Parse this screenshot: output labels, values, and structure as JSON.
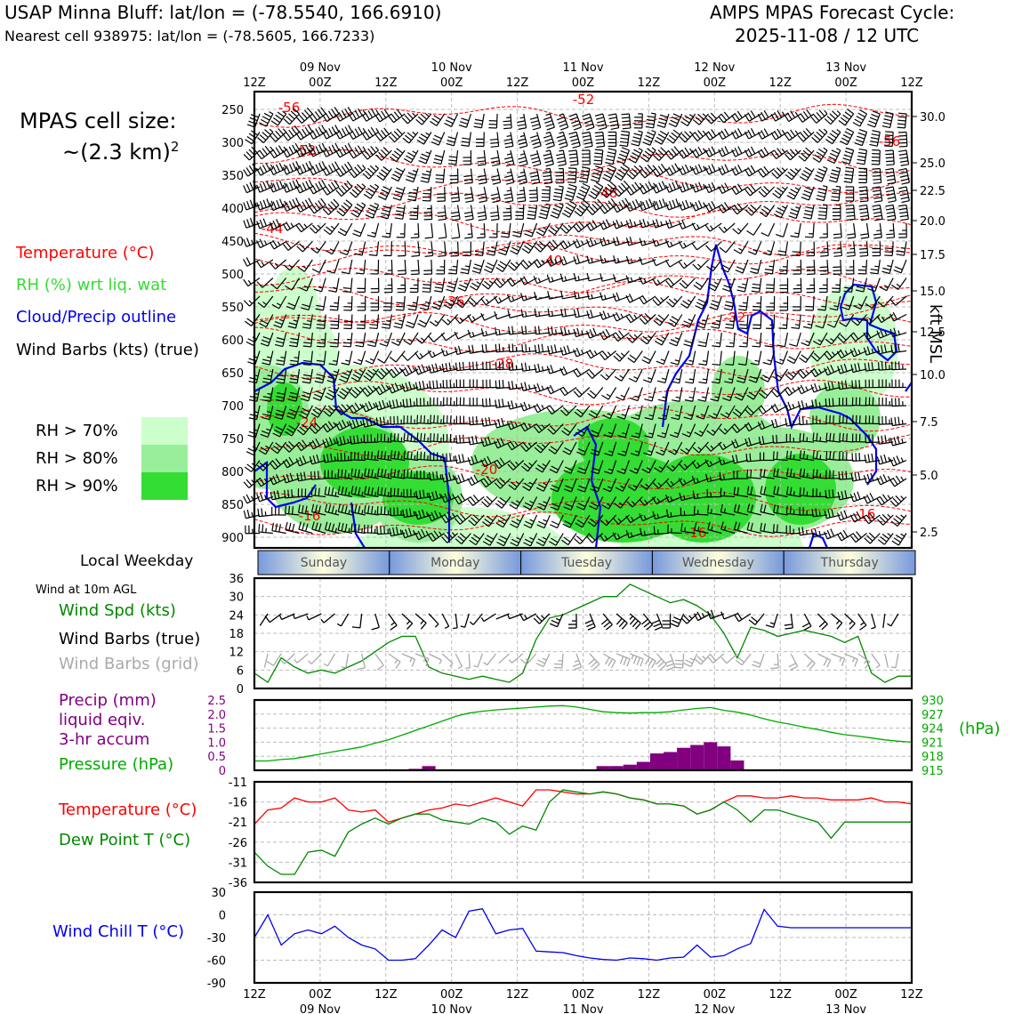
{
  "header": {
    "title": "USAP Minna Bluff: lat/lon = (-78.5540, 166.6910)",
    "subtitle": "Nearest cell 938975: lat/lon = (-78.5605, 166.7233)",
    "cycle_label": "AMPS MPAS Forecast Cycle:",
    "cycle_value": "2025-11-08 / 12 UTC"
  },
  "left_labels": {
    "cell_size_label": "MPAS cell size:",
    "cell_size_value": "~(2.3 km)",
    "cell_size_exp": "2",
    "temperature": "Temperature (°C)",
    "rh": "RH (%) wrt liq. wat",
    "cloud": "Cloud/Precip outline",
    "barbs": "Wind Barbs (kts) (true)",
    "rh70": "RH > 70%",
    "rh80": "RH > 80%",
    "rh90": "RH > 90%",
    "weekday": "Local Weekday",
    "wind10m": "Wind at 10m AGL",
    "wspd": "Wind Spd (kts)",
    "barbs_true": "Wind Barbs (true)",
    "barbs_grid": "Wind Barbs (grid)",
    "precip1": "Precip (mm)",
    "precip2": "liquid eqiv.",
    "precip3": "3-hr accum",
    "pressure": "Pressure (hPa)",
    "temp2": "Temperature (°C)",
    "dewpt": "Dew Point T (°C)",
    "windchill": "Wind Chill T (°C)",
    "kft": "kft MSL",
    "hpa": "(hPa)"
  },
  "colors": {
    "temperature": "#ff0000",
    "rh_text": "#33dd33",
    "cloud": "#0000ee",
    "rh70": "#ccffcc",
    "rh80": "#99ee99",
    "rh90": "#33dd33",
    "wspd": "#008800",
    "grid_barb": "#aaaaaa",
    "precip": "#800080",
    "pressure": "#00aa00",
    "dewpt": "#008800",
    "windchill": "#0000ee"
  },
  "time_axis": {
    "ticks": [
      "12Z",
      "00Z",
      "12Z",
      "00Z",
      "12Z",
      "00Z",
      "12Z",
      "00Z",
      "12Z",
      "00Z",
      "12Z"
    ],
    "dates": [
      "09 Nov",
      "10 Nov",
      "11 Nov",
      "12 Nov",
      "13 Nov"
    ]
  },
  "weekdays": [
    "Sunday",
    "Monday",
    "Tuesday",
    "Wednesday",
    "Thursday"
  ],
  "chart_data": [
    {
      "type": "heatmap",
      "title": "",
      "y_pressure_ticks": [
        "250",
        "300",
        "350",
        "400",
        "450",
        "500",
        "550",
        "600",
        "650",
        "700",
        "750",
        "800",
        "850",
        "900"
      ],
      "y_kft_ticks": [
        "30.0",
        "25.0",
        "22.5",
        "20.0",
        "17.5",
        "15.0",
        "12.5",
        "10.0",
        "7.5",
        "5.0",
        "2.5"
      ],
      "temperature_contour_labels": [
        "-56",
        "-52",
        "-52",
        "-56",
        "-48",
        "-44",
        "-40",
        "-36",
        "-32",
        "-28",
        "-24",
        "-20",
        "-16",
        "-16",
        "-16"
      ],
      "rh_shading": [
        "RH > 70%",
        "RH > 80%",
        "RH > 90%"
      ]
    },
    {
      "type": "line",
      "title": "",
      "ylabel": "Wind Spd (kts)",
      "ylim": [
        0,
        36
      ],
      "yticks": [
        "36",
        "30",
        "24",
        "18",
        "12",
        "6",
        "0"
      ],
      "series": [
        {
          "name": "Wind Spd (kts)",
          "values": [
            5,
            2,
            10,
            7,
            5,
            6,
            5,
            7,
            9,
            12,
            15,
            17,
            17,
            7,
            5,
            4,
            3,
            4,
            3,
            2,
            5,
            16,
            23,
            24,
            26,
            28,
            30,
            30,
            34,
            32,
            30,
            28,
            29,
            27,
            24,
            18,
            10,
            20,
            19,
            17,
            18,
            19,
            18,
            17,
            15,
            17,
            5,
            2,
            4,
            4
          ]
        }
      ],
      "x": [
        0,
        1,
        2,
        3,
        4,
        5,
        6,
        7,
        8,
        9,
        10,
        11,
        12,
        13,
        14,
        15,
        16,
        17,
        18,
        19,
        20,
        21,
        22,
        23,
        24,
        25,
        26,
        27,
        28,
        29,
        30,
        31,
        32,
        33,
        34,
        35,
        36,
        37,
        38,
        39,
        40,
        41,
        42,
        43,
        44,
        45,
        46,
        47,
        48,
        49
      ]
    },
    {
      "type": "bar",
      "title": "",
      "ylabel": "Precip (mm)",
      "ylim": [
        0,
        2.5
      ],
      "yticks": [
        "2.5",
        "2.0",
        "1.5",
        "1.0",
        "0.5",
        "0"
      ],
      "pressure_ticks": [
        "930",
        "927",
        "924",
        "921",
        "918",
        "915"
      ],
      "precip_values": [
        0,
        0,
        0,
        0,
        0,
        0,
        0,
        0,
        0,
        0,
        0,
        0,
        0.05,
        0.15,
        0,
        0,
        0,
        0,
        0,
        0,
        0,
        0,
        0,
        0,
        0,
        0,
        0.15,
        0.15,
        0.2,
        0.3,
        0.6,
        0.65,
        0.8,
        0.9,
        1.0,
        0.85,
        0.35,
        0,
        0,
        0,
        0,
        0,
        0,
        0,
        0,
        0,
        0,
        0,
        0,
        0
      ],
      "pressure_hpa": [
        917,
        917,
        917.3,
        917.5,
        918,
        918.5,
        919,
        919.5,
        920,
        920.8,
        921.5,
        922.5,
        923.5,
        924.5,
        925.5,
        926.5,
        927.2,
        927.6,
        927.9,
        928.1,
        928.3,
        928.5,
        928.7,
        928.8,
        928.5,
        928,
        927.5,
        927.3,
        927.2,
        927.3,
        927.3,
        927.5,
        927.9,
        928.2,
        928.4,
        927.8,
        927.4,
        926.8,
        926,
        925.3,
        924.8,
        924.2,
        923.7,
        923.1,
        922.6,
        922.3,
        921.9,
        921.5,
        921.2,
        921
      ]
    },
    {
      "type": "line",
      "title": "",
      "ylim": [
        -36,
        -11
      ],
      "yticks": [
        "-11",
        "-16",
        "-21",
        "-26",
        "-31",
        "-36"
      ],
      "series": [
        {
          "name": "Temperature (°C)",
          "values": [
            -21.5,
            -18,
            -17.5,
            -15,
            -16,
            -16,
            -15,
            -18,
            -18.5,
            -18,
            -21,
            -20,
            -19,
            -18,
            -17.5,
            -16.5,
            -17,
            -16,
            -15,
            -16,
            -17,
            -13,
            -13,
            -13.5,
            -14,
            -14,
            -13.5,
            -14,
            -15,
            -15.5,
            -16.5,
            -16.5,
            -17,
            -19,
            -18,
            -16,
            -14.5,
            -14.5,
            -15,
            -15,
            -14.5,
            -15,
            -15,
            -15.5,
            -15.5,
            -15.5,
            -15,
            -16,
            -16,
            -16.5
          ]
        },
        {
          "name": "Dew Point T (°C)",
          "values": [
            -28.5,
            -32,
            -34,
            -34,
            -28.5,
            -28,
            -29.5,
            -23.5,
            -21.5,
            -20,
            -21.5,
            -20,
            -19,
            -19,
            -20.5,
            -21,
            -21.5,
            -20,
            -21,
            -24,
            -22,
            -23,
            -16,
            -13,
            -13.5,
            -14,
            -13.5,
            -14,
            -15,
            -15.5,
            -16.5,
            -16.5,
            -17,
            -19,
            -18,
            -16,
            -18,
            -21,
            -18,
            -18,
            -19,
            -20,
            -21,
            -25,
            -21,
            -21,
            -21,
            -21,
            -21,
            -21
          ]
        }
      ]
    },
    {
      "type": "line",
      "title": "",
      "ylabel": "Wind Chill T (°C)",
      "ylim": [
        -90,
        30
      ],
      "yticks": [
        "30",
        "0",
        "-30",
        "-60",
        "-90"
      ],
      "series": [
        {
          "name": "Wind Chill T (°C)",
          "values": [
            -30,
            0,
            -40,
            -25,
            -20,
            -25,
            -15,
            -30,
            -40,
            -45,
            -60,
            -60,
            -58,
            -40,
            -20,
            -30,
            5,
            8,
            -25,
            -20,
            -18,
            -48,
            -49,
            -50,
            -54,
            -57,
            -59,
            -60,
            -57,
            -58,
            -60,
            -57,
            -56,
            -40,
            -56,
            -54,
            -45,
            -38,
            7,
            -15,
            -17,
            -17,
            -17,
            -17,
            -17,
            -17,
            -17,
            -17,
            -17,
            -17
          ]
        }
      ]
    }
  ]
}
